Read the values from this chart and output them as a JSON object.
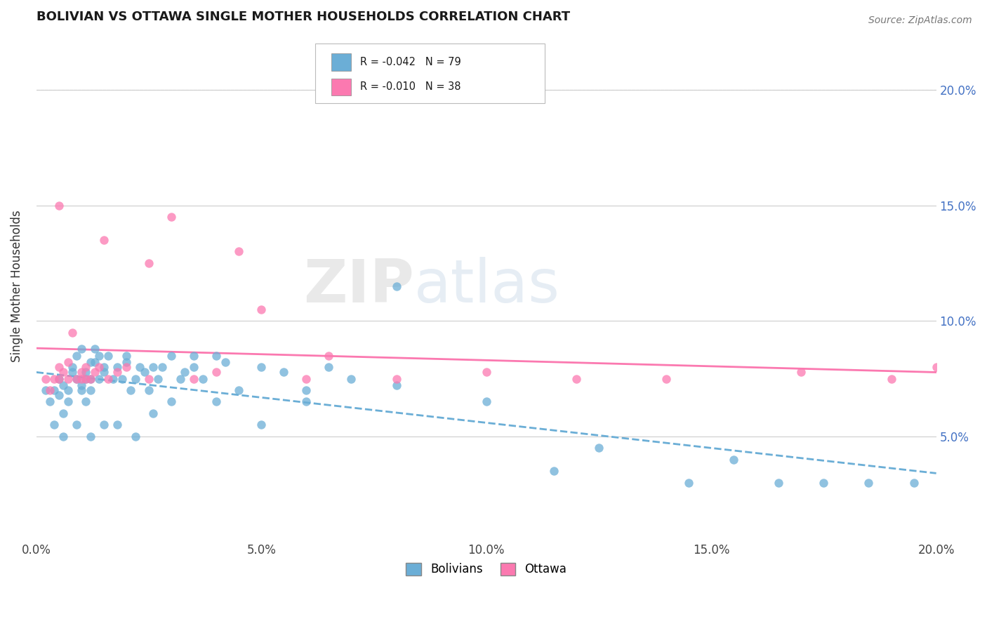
{
  "title": "BOLIVIAN VS OTTAWA SINGLE MOTHER HOUSEHOLDS CORRELATION CHART",
  "source": "Source: ZipAtlas.com",
  "ylabel": "Single Mother Households",
  "xmin": 0.0,
  "xmax": 20.0,
  "ymin": 0.5,
  "ymax": 22.5,
  "yticks": [
    5.0,
    10.0,
    15.0,
    20.0
  ],
  "legend_bolivians": "Bolivians",
  "legend_ottawa": "Ottawa",
  "legend_r_bolivians": "-0.042",
  "legend_n_bolivians": "79",
  "legend_r_ottawa": "-0.010",
  "legend_n_ottawa": "38",
  "color_bolivians": "#6baed6",
  "color_ottawa": "#fb79b0",
  "watermark_zip": "ZIP",
  "watermark_atlas": "atlas",
  "bolivians_x": [
    0.2,
    0.3,
    0.4,
    0.5,
    0.5,
    0.6,
    0.6,
    0.7,
    0.7,
    0.8,
    0.8,
    0.9,
    0.9,
    1.0,
    1.0,
    1.0,
    1.1,
    1.1,
    1.1,
    1.2,
    1.2,
    1.2,
    1.3,
    1.3,
    1.4,
    1.4,
    1.5,
    1.5,
    1.6,
    1.7,
    1.8,
    1.9,
    2.0,
    2.0,
    2.1,
    2.2,
    2.3,
    2.4,
    2.5,
    2.6,
    2.7,
    2.8,
    3.0,
    3.2,
    3.3,
    3.5,
    3.7,
    4.0,
    4.2,
    4.5,
    5.0,
    5.5,
    6.0,
    6.5,
    7.0,
    8.0,
    10.0,
    11.5,
    12.5,
    14.5,
    15.5,
    16.5,
    17.5,
    18.5,
    19.5,
    0.4,
    0.6,
    0.9,
    1.2,
    1.5,
    1.8,
    2.2,
    2.6,
    3.0,
    3.5,
    4.0,
    5.0,
    6.0,
    8.0
  ],
  "bolivians_y": [
    7.0,
    6.5,
    7.0,
    6.8,
    7.5,
    7.2,
    6.0,
    7.0,
    6.5,
    7.8,
    8.0,
    7.5,
    8.5,
    7.0,
    8.8,
    7.2,
    7.5,
    6.5,
    7.8,
    8.2,
    7.0,
    7.5,
    8.8,
    8.2,
    7.5,
    8.5,
    7.8,
    8.0,
    8.5,
    7.5,
    8.0,
    7.5,
    8.5,
    8.2,
    7.0,
    7.5,
    8.0,
    7.8,
    7.0,
    8.0,
    7.5,
    8.0,
    8.5,
    7.5,
    7.8,
    8.0,
    7.5,
    8.5,
    8.2,
    7.0,
    8.0,
    7.8,
    7.0,
    8.0,
    7.5,
    7.2,
    6.5,
    3.5,
    4.5,
    3.0,
    4.0,
    3.0,
    3.0,
    3.0,
    3.0,
    5.5,
    5.0,
    5.5,
    5.0,
    5.5,
    5.5,
    5.0,
    6.0,
    6.5,
    8.5,
    6.5,
    5.5,
    6.5,
    11.5
  ],
  "ottawa_x": [
    0.2,
    0.3,
    0.4,
    0.5,
    0.5,
    0.6,
    0.7,
    0.7,
    0.8,
    0.9,
    1.0,
    1.0,
    1.1,
    1.1,
    1.2,
    1.3,
    1.4,
    1.6,
    1.8,
    2.0,
    2.5,
    3.0,
    3.5,
    4.0,
    5.0,
    6.0,
    6.5,
    8.0,
    10.0,
    12.0,
    14.0,
    17.0,
    19.0,
    20.0,
    0.5,
    1.5,
    2.5,
    4.5
  ],
  "ottawa_y": [
    7.5,
    7.0,
    7.5,
    8.0,
    7.5,
    7.8,
    8.2,
    7.5,
    9.5,
    7.5,
    7.8,
    7.5,
    8.0,
    7.5,
    7.5,
    7.8,
    8.0,
    7.5,
    7.8,
    8.0,
    7.5,
    14.5,
    7.5,
    7.8,
    10.5,
    7.5,
    8.5,
    7.5,
    7.8,
    7.5,
    7.5,
    7.8,
    7.5,
    8.0,
    15.0,
    13.5,
    12.5,
    13.0
  ]
}
